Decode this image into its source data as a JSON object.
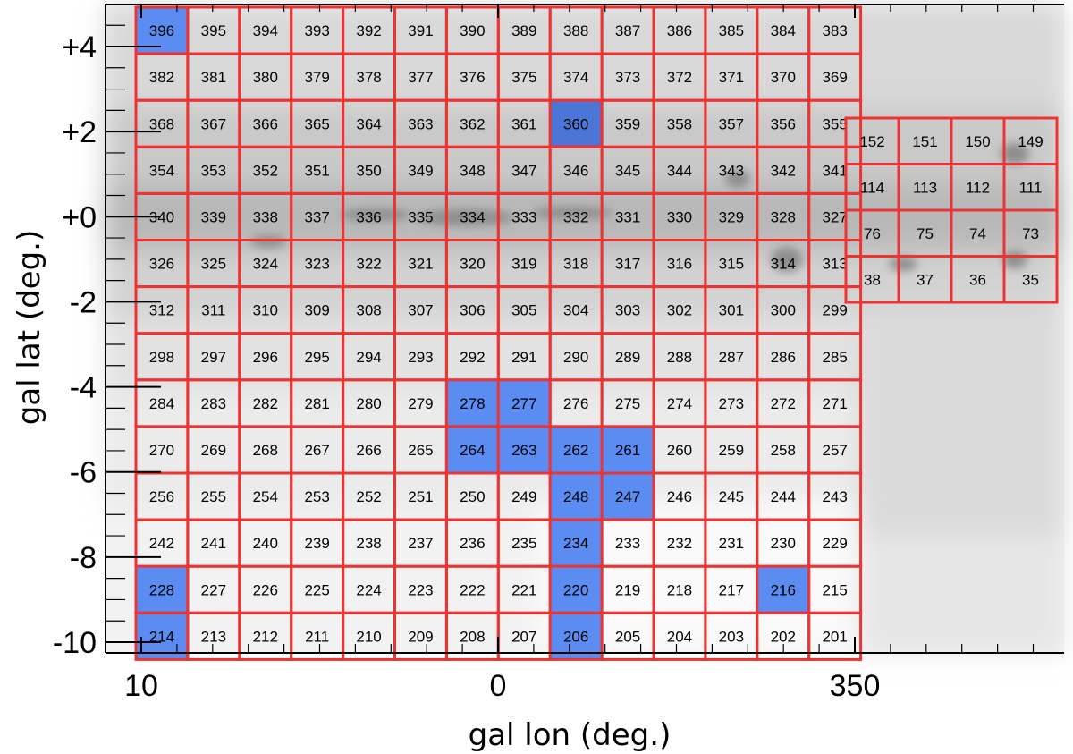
{
  "chart_data": {
    "type": "heatmap",
    "title": "",
    "xlabel": "gal lon (deg.)",
    "ylabel": "gal lat (deg.)",
    "x_tick_labels": [
      "10",
      "0",
      "350"
    ],
    "y_tick_labels": [
      "+4",
      "+2",
      "+0",
      "-2",
      "-4",
      "-6",
      "-8",
      "-10"
    ],
    "background": "grayscale extinction map, darkest along the Galactic plane",
    "grid_color": "#ee3333",
    "highlight_color": "#5b8cf2",
    "main_grid": {
      "rows": [
        [
          396,
          395,
          394,
          393,
          392,
          391,
          390,
          389,
          388,
          387,
          386,
          385,
          384,
          383
        ],
        [
          382,
          381,
          380,
          379,
          378,
          377,
          376,
          375,
          374,
          373,
          372,
          371,
          370,
          369
        ],
        [
          368,
          367,
          366,
          365,
          364,
          363,
          362,
          361,
          360,
          359,
          358,
          357,
          356,
          355
        ],
        [
          354,
          353,
          352,
          351,
          350,
          349,
          348,
          347,
          346,
          345,
          344,
          343,
          342,
          341
        ],
        [
          340,
          339,
          338,
          337,
          336,
          335,
          334,
          333,
          332,
          331,
          330,
          329,
          328,
          327
        ],
        [
          326,
          325,
          324,
          323,
          322,
          321,
          320,
          319,
          318,
          317,
          316,
          315,
          314,
          313
        ],
        [
          312,
          311,
          310,
          309,
          308,
          307,
          306,
          305,
          304,
          303,
          302,
          301,
          300,
          299
        ],
        [
          298,
          297,
          296,
          295,
          294,
          293,
          292,
          291,
          290,
          289,
          288,
          287,
          286,
          285
        ],
        [
          284,
          283,
          282,
          281,
          280,
          279,
          278,
          277,
          276,
          275,
          274,
          273,
          272,
          271
        ],
        [
          270,
          269,
          268,
          267,
          266,
          265,
          264,
          263,
          262,
          261,
          260,
          259,
          258,
          257
        ],
        [
          256,
          255,
          254,
          253,
          252,
          251,
          250,
          249,
          248,
          247,
          246,
          245,
          244,
          243
        ],
        [
          242,
          241,
          240,
          239,
          238,
          237,
          236,
          235,
          234,
          233,
          232,
          231,
          230,
          229
        ],
        [
          228,
          227,
          226,
          225,
          224,
          223,
          222,
          221,
          220,
          219,
          218,
          217,
          216,
          215
        ],
        [
          214,
          213,
          212,
          211,
          210,
          209,
          208,
          207,
          206,
          205,
          204,
          203,
          202,
          201
        ]
      ]
    },
    "side_grid": {
      "rows": [
        [
          152,
          151,
          150,
          149
        ],
        [
          114,
          113,
          112,
          111
        ],
        [
          76,
          75,
          74,
          73
        ],
        [
          38,
          37,
          36,
          35
        ]
      ]
    },
    "highlighted_fields": [
      396,
      360,
      278,
      277,
      264,
      263,
      262,
      261,
      248,
      247,
      234,
      228,
      220,
      216,
      214,
      206
    ],
    "dark_highlighted_fields": [
      360
    ]
  }
}
